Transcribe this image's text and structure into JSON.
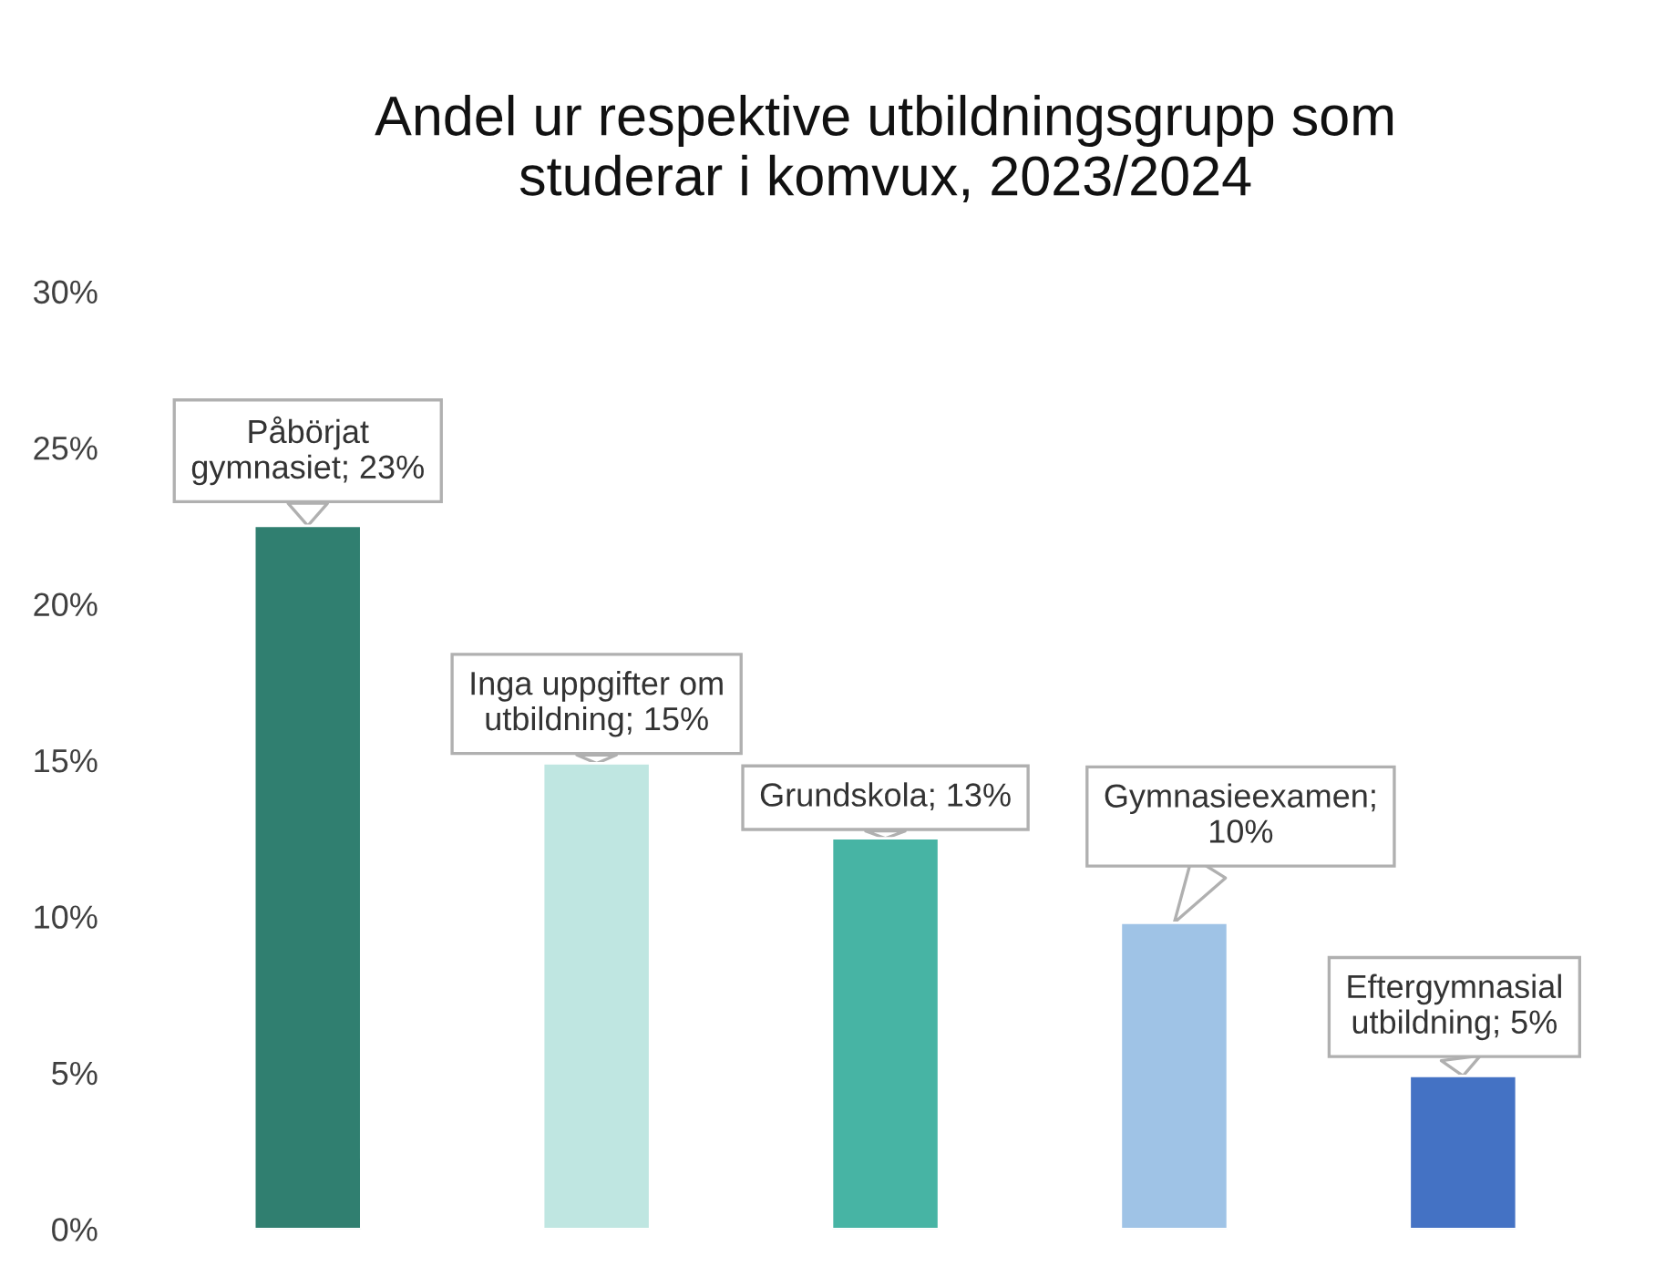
{
  "chart_data": {
    "type": "bar",
    "title": "Andel ur respektive utbildningsgrupp som\nstuderar i komvux, 2023/2024",
    "categories": [
      null,
      null,
      null,
      null,
      null
    ],
    "values": [
      22.5,
      14.9,
      12.5,
      9.8,
      4.9
    ],
    "colors": [
      "#307f70",
      "#bfe6e1",
      "#47b4a4",
      "#9fc3e6",
      "#4472c4"
    ],
    "value_labels": [
      "Påbörjat\ngymnasiet; 23%",
      "Inga uppgifter om\nutbildning; 15%",
      "Grundskola; 13%",
      "Gymnasieexamen;\n10%",
      "Eftergymnasial\nutbildning; 5%"
    ],
    "ylim": [
      0,
      30
    ],
    "yticks": [
      {
        "value": 0,
        "label": "0%"
      },
      {
        "value": 5,
        "label": "5%"
      },
      {
        "value": 10,
        "label": "10%"
      },
      {
        "value": 15,
        "label": "15%"
      },
      {
        "value": 20,
        "label": "20%"
      },
      {
        "value": 25,
        "label": "25%"
      },
      {
        "value": 30,
        "label": "30%"
      }
    ],
    "grid": false,
    "legend": false
  }
}
